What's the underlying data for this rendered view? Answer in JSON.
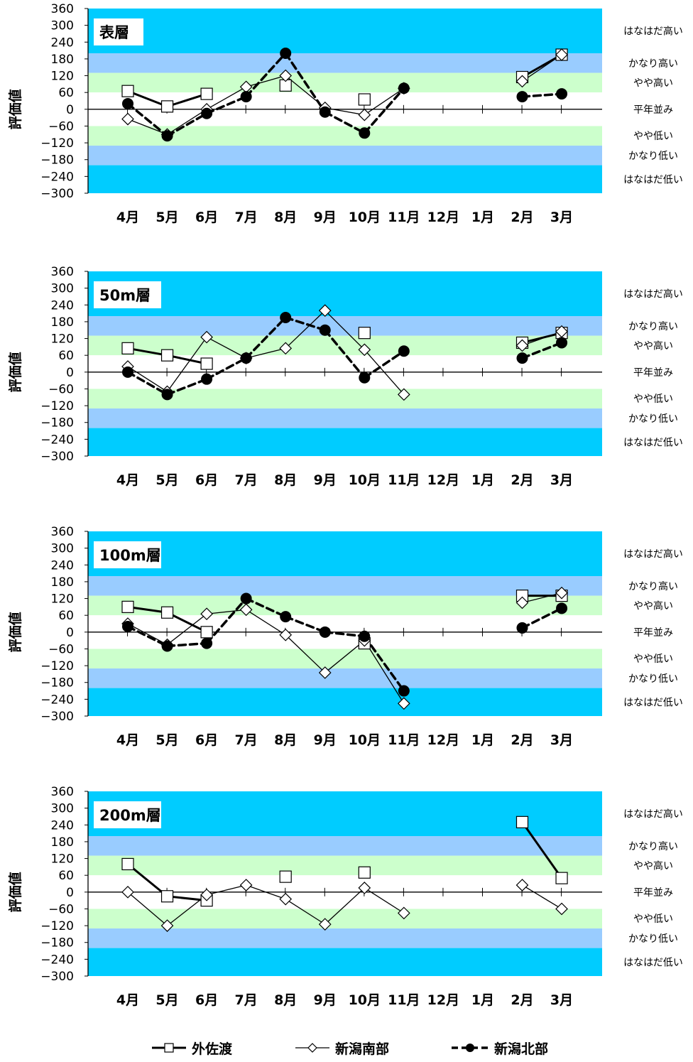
{
  "legend": {
    "sotosado": "外佐渡",
    "niigata_south": "新潟南部",
    "niigata_north": "新潟北部"
  },
  "band_labels": [
    "はなはだ高い",
    "かなり高い",
    "やや高い",
    "平年並み",
    "やや低い",
    "かなり低い",
    "はなはだ低い"
  ],
  "colors": {
    "cyan": "#00ccff",
    "lightblue": "#99ccff",
    "lightgreen": "#ccffcc",
    "white": "#ffffff"
  },
  "chart_data": [
    {
      "type": "line",
      "title": "表層",
      "ylabel": "評価値",
      "ylim": [
        -300,
        360
      ],
      "yticks": [
        360,
        300,
        240,
        180,
        120,
        60,
        0,
        -60,
        -120,
        -180,
        -240,
        -300
      ],
      "categories": [
        "4月",
        "5月",
        "6月",
        "7月",
        "8月",
        "9月",
        "10月",
        "11月",
        "12月",
        "1月",
        "2月",
        "3月"
      ],
      "series": [
        {
          "name": "外佐渡",
          "values": [
            65,
            10,
            55,
            null,
            85,
            null,
            35,
            null,
            null,
            null,
            115,
            195
          ]
        },
        {
          "name": "新潟南部",
          "values": [
            -35,
            -90,
            0,
            80,
            120,
            5,
            -20,
            75,
            null,
            null,
            100,
            195
          ]
        },
        {
          "name": "新潟北部",
          "values": [
            20,
            -95,
            -15,
            45,
            200,
            -10,
            -85,
            75,
            null,
            null,
            45,
            55
          ]
        }
      ]
    },
    {
      "type": "line",
      "title": "50m層",
      "ylabel": "評価値",
      "ylim": [
        -300,
        360
      ],
      "yticks": [
        360,
        300,
        240,
        180,
        120,
        60,
        0,
        -60,
        -120,
        -180,
        -240,
        -300
      ],
      "categories": [
        "4月",
        "5月",
        "6月",
        "7月",
        "8月",
        "9月",
        "10月",
        "11月",
        "12月",
        "1月",
        "2月",
        "3月"
      ],
      "series": [
        {
          "name": "外佐渡",
          "values": [
            85,
            60,
            30,
            null,
            null,
            null,
            140,
            null,
            null,
            null,
            105,
            140
          ]
        },
        {
          "name": "新潟南部",
          "values": [
            20,
            -70,
            125,
            50,
            85,
            220,
            80,
            -80,
            null,
            null,
            95,
            145
          ]
        },
        {
          "name": "新潟北部",
          "values": [
            0,
            -80,
            -25,
            50,
            195,
            150,
            -20,
            75,
            null,
            null,
            50,
            105
          ]
        }
      ]
    },
    {
      "type": "line",
      "title": "100m層",
      "ylabel": "評価値",
      "ylim": [
        -300,
        360
      ],
      "yticks": [
        360,
        300,
        240,
        180,
        120,
        60,
        0,
        -60,
        -120,
        -180,
        -240,
        -300
      ],
      "categories": [
        "4月",
        "5月",
        "6月",
        "7月",
        "8月",
        "9月",
        "10月",
        "11月",
        "12月",
        "1月",
        "2月",
        "3月"
      ],
      "series": [
        {
          "name": "外佐渡",
          "values": [
            90,
            70,
            0,
            null,
            null,
            null,
            -40,
            null,
            null,
            null,
            130,
            130
          ]
        },
        {
          "name": "新潟南部",
          "values": [
            30,
            -45,
            65,
            80,
            -10,
            -145,
            -30,
            -255,
            null,
            null,
            105,
            140
          ]
        },
        {
          "name": "新潟北部",
          "values": [
            20,
            -50,
            -40,
            120,
            55,
            0,
            -15,
            -210,
            null,
            null,
            15,
            85
          ]
        }
      ]
    },
    {
      "type": "line",
      "title": "200m層",
      "ylabel": "評価値",
      "ylim": [
        -300,
        360
      ],
      "yticks": [
        360,
        300,
        240,
        180,
        120,
        60,
        0,
        -60,
        -120,
        -180,
        -240,
        -300
      ],
      "categories": [
        "4月",
        "5月",
        "6月",
        "7月",
        "8月",
        "9月",
        "10月",
        "11月",
        "12月",
        "1月",
        "2月",
        "3月"
      ],
      "series": [
        {
          "name": "外佐渡",
          "values": [
            100,
            -15,
            -30,
            null,
            55,
            null,
            70,
            null,
            null,
            null,
            250,
            50
          ]
        },
        {
          "name": "新潟南部",
          "values": [
            0,
            -120,
            -10,
            25,
            -25,
            -115,
            15,
            -75,
            null,
            null,
            25,
            -60
          ]
        },
        {
          "name": "新潟北部",
          "values": [
            null,
            null,
            null,
            null,
            null,
            null,
            null,
            null,
            null,
            null,
            null,
            null
          ]
        }
      ]
    }
  ]
}
